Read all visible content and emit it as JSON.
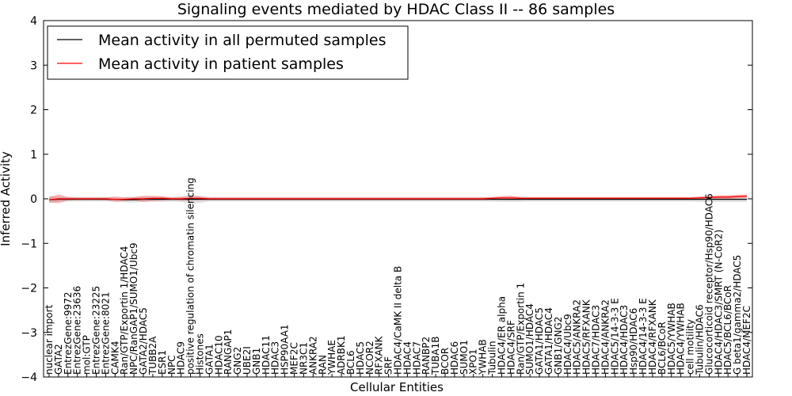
{
  "chart_data": {
    "type": "line",
    "title": "Signaling events mediated by HDAC Class II -- 86 samples",
    "xlabel": "Cellular Entities",
    "ylabel": "Inferred Activity",
    "ylim": [
      -4,
      4
    ],
    "yticks": [
      "−4",
      "−3",
      "−2",
      "−1",
      "0",
      "1",
      "2",
      "3",
      "4"
    ],
    "legend": {
      "placement": "top-left"
    },
    "categories": [
      "nuclear import",
      "GATA2",
      "EntrezGene:9972",
      "EntrezGene:23636",
      "mol:GTP",
      "EntrezGene:23225",
      "EntrezGene:8021",
      "CAMK4",
      "Ran/GTP/Exportin 1/HDAC4",
      "NPC/RanGAP1/SUMO1/Ubc9",
      "GATA2/HDAC5",
      "TUBB2A",
      "ESR1",
      "NPC",
      "HDAC9",
      "positive regulation of chromatin silencing",
      "Histones",
      "GATA1",
      "HDAC10",
      "RANGAP1",
      "GNG2",
      "UBE2I",
      "GNB1",
      "HDAC11",
      "HDAC3",
      "HSP90AA1",
      "MEF2C",
      "NR3C1",
      "ANKRA2",
      "RAN",
      "YWHAE",
      "ADRBK1",
      "BCL6",
      "HDAC5",
      "NCOR2",
      "RFXANK",
      "SRF",
      "HDAC4/CaMK II delta B",
      "HDAC4",
      "HDAC7",
      "RANBP2",
      "TUBA1B",
      "BCOR",
      "HDAC6",
      "SUMO1",
      "XPO1",
      "YWHAB",
      "Tubulin",
      "HDAC4/ER alpha",
      "HDAC4/SRF",
      "Ran/GTP/Exportin 1",
      "SUMO1/HDAC4",
      "GATA1/HDAC5",
      "GATA1/HDAC4",
      "GNB1/GNG2",
      "HDAC4/Ubc9",
      "HDAC5/ANKRA2",
      "HDAC5/RFXANK",
      "HDAC7/HDAC3",
      "HDAC4/ANKRA2",
      "HDAC5/14-3-3 E",
      "HDAC4/HDAC3",
      "Hsp90/HDAC6",
      "HDAC4/14-3-3 E",
      "HDAC4/RFXANK",
      "BCL6/BCoR",
      "HDAC5/YWHAB",
      "HDAC4/YWHAB",
      "cell motility",
      "Tubulin/HDAC6",
      "Glucocorticoid receptor/Hsp90/HDAC6",
      "HDAC4/HDAC3/SMRT (N-CoR2)",
      "HDAC5/BCL6/BCoR",
      "G beta1/gamma2/HDAC5",
      "HDAC4/MEF2C"
    ],
    "series": [
      {
        "name": "Mean activity in all permuted samples",
        "color": "#000000",
        "values": [
          -0.02,
          -0.01,
          -0.01,
          -0.01,
          -0.01,
          -0.01,
          -0.01,
          -0.01,
          -0.02,
          -0.02,
          -0.01,
          -0.01,
          -0.01,
          -0.01,
          -0.01,
          -0.01,
          -0.01,
          -0.01,
          -0.01,
          -0.01,
          -0.01,
          -0.01,
          -0.01,
          -0.01,
          -0.01,
          -0.01,
          -0.01,
          -0.01,
          -0.01,
          -0.01,
          -0.01,
          -0.01,
          -0.01,
          -0.01,
          -0.01,
          -0.01,
          -0.01,
          -0.01,
          -0.01,
          -0.01,
          -0.01,
          -0.01,
          -0.01,
          -0.01,
          -0.01,
          -0.01,
          -0.01,
          -0.01,
          -0.01,
          -0.01,
          -0.01,
          -0.01,
          -0.01,
          -0.01,
          -0.01,
          -0.01,
          -0.01,
          -0.01,
          -0.01,
          -0.01,
          -0.01,
          -0.01,
          -0.01,
          -0.01,
          -0.01,
          -0.01,
          -0.01,
          -0.01,
          -0.01,
          -0.01,
          -0.01,
          -0.01,
          -0.01,
          -0.01,
          -0.01
        ],
        "band": [
          0.08,
          0.06,
          0.05,
          0.05,
          0.05,
          0.05,
          0.05,
          0.05,
          0.06,
          0.06,
          0.06,
          0.06,
          0.06,
          0.05,
          0.06,
          0.1,
          0.08,
          0.05,
          0.05,
          0.05,
          0.05,
          0.05,
          0.05,
          0.05,
          0.05,
          0.05,
          0.05,
          0.05,
          0.05,
          0.05,
          0.05,
          0.05,
          0.05,
          0.05,
          0.05,
          0.05,
          0.05,
          0.05,
          0.05,
          0.05,
          0.05,
          0.05,
          0.05,
          0.05,
          0.05,
          0.05,
          0.05,
          0.05,
          0.06,
          0.06,
          0.06,
          0.05,
          0.05,
          0.05,
          0.05,
          0.05,
          0.05,
          0.05,
          0.05,
          0.05,
          0.05,
          0.05,
          0.05,
          0.05,
          0.05,
          0.05,
          0.05,
          0.05,
          0.05,
          0.06,
          0.06,
          0.06,
          0.06,
          0.06,
          0.06
        ]
      },
      {
        "name": "Mean activity in patient samples",
        "color": "#ff0000",
        "values": [
          -0.02,
          0.0,
          0.0,
          0.0,
          0.0,
          0.0,
          0.0,
          -0.01,
          -0.01,
          0.0,
          0.0,
          0.01,
          0.01,
          0.0,
          0.0,
          0.01,
          0.01,
          0.0,
          0.0,
          0.0,
          0.0,
          0.0,
          0.0,
          0.0,
          0.0,
          0.0,
          0.0,
          0.0,
          0.0,
          0.0,
          0.0,
          0.0,
          0.0,
          0.0,
          0.0,
          0.0,
          0.0,
          0.0,
          0.0,
          0.0,
          0.0,
          0.0,
          0.0,
          0.0,
          0.0,
          0.0,
          0.0,
          0.01,
          0.02,
          0.02,
          0.01,
          0.01,
          0.01,
          0.01,
          0.01,
          0.01,
          0.01,
          0.01,
          0.01,
          0.01,
          0.01,
          0.01,
          0.01,
          0.01,
          0.01,
          0.01,
          0.01,
          0.01,
          0.01,
          0.02,
          0.03,
          0.04,
          0.04,
          0.05,
          0.06
        ],
        "band": [
          0.06,
          0.1,
          0.04,
          0.03,
          0.03,
          0.03,
          0.03,
          0.06,
          0.04,
          0.04,
          0.07,
          0.06,
          0.05,
          0.03,
          0.04,
          0.05,
          0.04,
          0.03,
          0.03,
          0.03,
          0.03,
          0.03,
          0.03,
          0.03,
          0.03,
          0.03,
          0.03,
          0.03,
          0.03,
          0.03,
          0.03,
          0.03,
          0.03,
          0.03,
          0.03,
          0.03,
          0.03,
          0.03,
          0.03,
          0.03,
          0.03,
          0.03,
          0.03,
          0.03,
          0.03,
          0.03,
          0.03,
          0.03,
          0.04,
          0.05,
          0.03,
          0.03,
          0.03,
          0.03,
          0.03,
          0.03,
          0.03,
          0.03,
          0.03,
          0.03,
          0.03,
          0.03,
          0.03,
          0.03,
          0.03,
          0.03,
          0.03,
          0.03,
          0.03,
          0.03,
          0.03,
          0.04,
          0.04,
          0.04,
          0.04
        ]
      }
    ]
  }
}
